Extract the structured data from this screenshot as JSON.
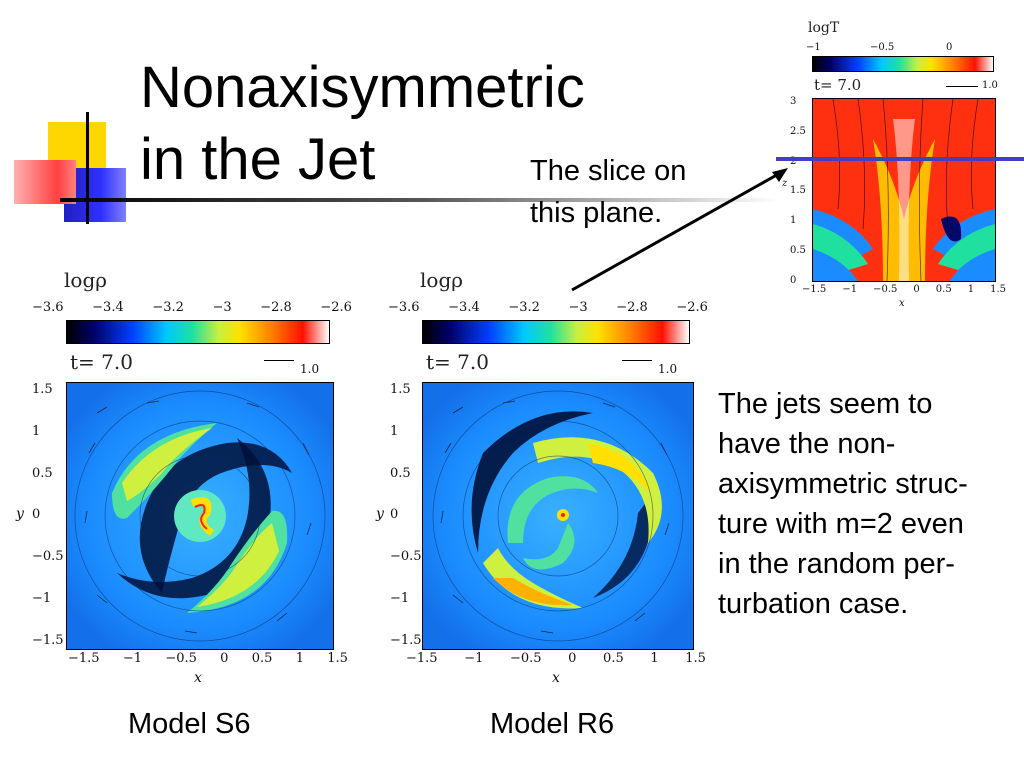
{
  "slide": {
    "title_line1": "Nonaxisymmetric",
    "title_line2": "in the Jet",
    "slice_label_line1": "The slice on",
    "slice_label_line2": "this plane.",
    "description": [
      "The jets seem to",
      "have the non-",
      "axisymmetric struc-",
      "ture with m=2 even",
      "in the random per-",
      "turbation case."
    ]
  },
  "panels": {
    "left": {
      "model_label": "Model S6",
      "colorbar_title": "logρ",
      "colorbar_ticks": [
        "−3.6",
        "−3.4",
        "−3.2",
        "−3",
        "−2.8",
        "−2.6"
      ],
      "time_label": "t=  7.0",
      "vector_label": "1.0",
      "x_ticks": [
        "−1.5",
        "−1",
        "−0.5",
        "0",
        "0.5",
        "1",
        "1.5"
      ],
      "y_ticks": [
        "1.5",
        "1",
        "0.5",
        "0",
        "−0.5",
        "−1",
        "−1.5"
      ],
      "x_label": "x",
      "y_label": "y"
    },
    "right": {
      "model_label": "Model R6",
      "colorbar_title": "logρ",
      "colorbar_ticks": [
        "−3.6",
        "−3.4",
        "−3.2",
        "−3",
        "−2.8",
        "−2.6"
      ],
      "time_label": "t=  7.0",
      "vector_label": "1.0",
      "x_ticks": [
        "−1.5",
        "−1",
        "−0.5",
        "0",
        "0.5",
        "1",
        "1.5"
      ],
      "y_ticks": [
        "1.5",
        "1",
        "0.5",
        "0",
        "−0.5",
        "−1",
        "−1.5"
      ],
      "x_label": "x",
      "y_label": "y"
    },
    "inset": {
      "colorbar_title": "logT",
      "colorbar_ticks": [
        "−1",
        "−0.5",
        "0"
      ],
      "time_label": "t=  7.0",
      "vector_label": "1.0",
      "x_ticks": [
        "−1.5",
        "−1",
        "−0.5",
        "0",
        "0.5",
        "1",
        "1.5"
      ],
      "z_ticks": [
        "3",
        "2.5",
        "2",
        "1.5",
        "1",
        "0.5",
        "0"
      ],
      "x_label": "x",
      "z_label": "z"
    }
  },
  "colors": {
    "slice_plane_line": "#4040c0",
    "plot_background": "#1a8cff"
  }
}
